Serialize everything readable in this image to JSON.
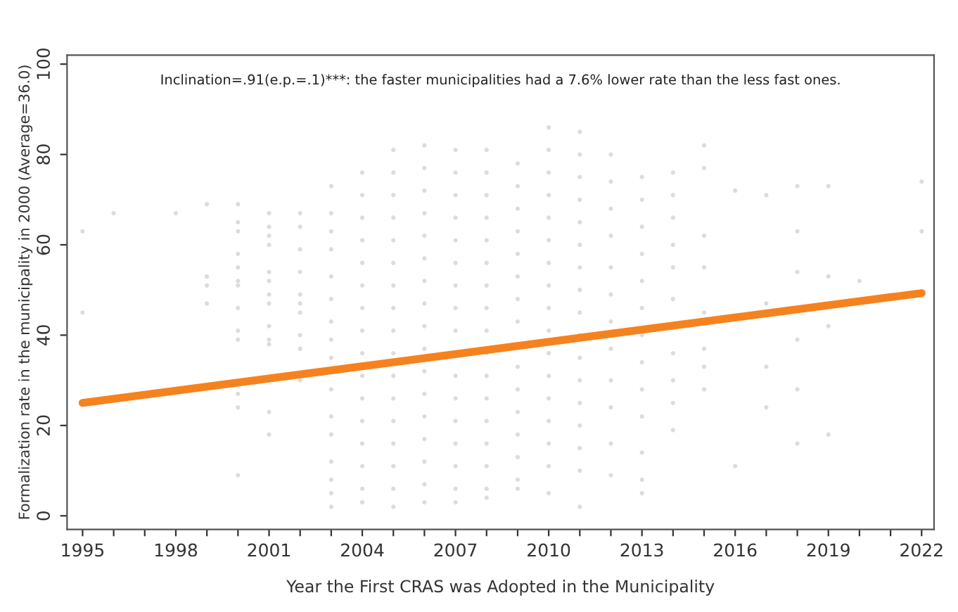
{
  "chart_data": {
    "type": "scatter",
    "xlabel": "Year the First CRAS was Adopted in the Municipality",
    "ylabel": "Formalization rate in the municipality in 2000 (Average=36.0)",
    "annotations": [
      "Inclination=.91(e.p.=.1)***: the faster municipalities had a 7.6% lower rate than the less fast ones."
    ],
    "xlim": [
      1994.5,
      2022.4
    ],
    "ylim": [
      -3,
      102
    ],
    "xticks": [
      1995,
      {
        "value": 1996,
        "label": null
      },
      {
        "value": 1997,
        "label": null
      },
      1998,
      {
        "value": 1999,
        "label": null
      },
      {
        "value": 2000,
        "label": null
      },
      2001,
      {
        "value": 2002,
        "label": null
      },
      {
        "value": 2003,
        "label": null
      },
      2004,
      {
        "value": 2005,
        "label": null
      },
      {
        "value": 2006,
        "label": null
      },
      2007,
      {
        "value": 2008,
        "label": null
      },
      {
        "value": 2009,
        "label": null
      },
      2010,
      {
        "value": 2011,
        "label": null
      },
      {
        "value": 2012,
        "label": null
      },
      2013,
      {
        "value": 2014,
        "label": null
      },
      {
        "value": 2015,
        "label": null
      },
      2016,
      {
        "value": 2017,
        "label": null
      },
      {
        "value": 2018,
        "label": null
      },
      2019,
      {
        "value": 2020,
        "label": null
      },
      {
        "value": 2021,
        "label": null
      },
      2022
    ],
    "yticks": [
      0,
      20,
      40,
      60,
      80,
      100
    ],
    "grid": false,
    "legend": false,
    "series": [
      {
        "color": "#c4c4c4",
        "marker": "circle",
        "x": [
          1995,
          1995,
          1996,
          1998,
          1999,
          1999,
          1999,
          1999,
          2000,
          2000,
          2000,
          2000,
          2000,
          2000,
          2000,
          2000,
          2000,
          2000,
          2000,
          2000,
          2000,
          2001,
          2001,
          2001,
          2001,
          2001,
          2001,
          2001,
          2001,
          2001,
          2001,
          2001,
          2001,
          2001,
          2002,
          2002,
          2002,
          2002,
          2002,
          2002,
          2002,
          2002,
          2002,
          2002,
          2003,
          2003,
          2003,
          2003,
          2003,
          2003,
          2003,
          2003,
          2003,
          2003,
          2003,
          2003,
          2003,
          2003,
          2003,
          2003,
          2004,
          2004,
          2004,
          2004,
          2004,
          2004,
          2004,
          2004,
          2004,
          2004,
          2004,
          2004,
          2004,
          2004,
          2004,
          2004,
          2005,
          2005,
          2005,
          2005,
          2005,
          2005,
          2005,
          2005,
          2005,
          2005,
          2005,
          2005,
          2005,
          2005,
          2005,
          2005,
          2005,
          2006,
          2006,
          2006,
          2006,
          2006,
          2006,
          2006,
          2006,
          2006,
          2006,
          2006,
          2006,
          2006,
          2006,
          2006,
          2006,
          2006,
          2007,
          2007,
          2007,
          2007,
          2007,
          2007,
          2007,
          2007,
          2007,
          2007,
          2007,
          2007,
          2007,
          2007,
          2007,
          2007,
          2008,
          2008,
          2008,
          2008,
          2008,
          2008,
          2008,
          2008,
          2008,
          2008,
          2008,
          2008,
          2008,
          2008,
          2008,
          2008,
          2008,
          2009,
          2009,
          2009,
          2009,
          2009,
          2009,
          2009,
          2009,
          2009,
          2009,
          2009,
          2009,
          2009,
          2009,
          2009,
          2010,
          2010,
          2010,
          2010,
          2010,
          2010,
          2010,
          2010,
          2010,
          2010,
          2010,
          2010,
          2010,
          2010,
          2010,
          2010,
          2010,
          2011,
          2011,
          2011,
          2011,
          2011,
          2011,
          2011,
          2011,
          2011,
          2011,
          2011,
          2011,
          2011,
          2011,
          2011,
          2011,
          2011,
          2012,
          2012,
          2012,
          2012,
          2012,
          2012,
          2012,
          2012,
          2012,
          2012,
          2012,
          2012,
          2013,
          2013,
          2013,
          2013,
          2013,
          2013,
          2013,
          2013,
          2013,
          2013,
          2013,
          2013,
          2013,
          2014,
          2014,
          2014,
          2014,
          2014,
          2014,
          2014,
          2014,
          2014,
          2014,
          2015,
          2015,
          2015,
          2015,
          2015,
          2015,
          2015,
          2015,
          2016,
          2016,
          2017,
          2017,
          2017,
          2017,
          2018,
          2018,
          2018,
          2018,
          2018,
          2018,
          2019,
          2019,
          2019,
          2019,
          2020,
          2022,
          2022
        ],
        "values": [
          63,
          45,
          67,
          67,
          69,
          53,
          51,
          47,
          69,
          65,
          63,
          58,
          55,
          52,
          51,
          46,
          41,
          39,
          27,
          24,
          9,
          67,
          64,
          62,
          60,
          54,
          52,
          49,
          47,
          42,
          39,
          38,
          23,
          18,
          67,
          64,
          59,
          54,
          49,
          47,
          45,
          40,
          37,
          30,
          73,
          67,
          63,
          59,
          53,
          48,
          43,
          39,
          35,
          28,
          22,
          18,
          12,
          8,
          5,
          2,
          76,
          71,
          66,
          61,
          56,
          51,
          46,
          41,
          36,
          31,
          26,
          21,
          16,
          11,
          6,
          3,
          81,
          76,
          71,
          66,
          61,
          56,
          51,
          46,
          41,
          36,
          31,
          26,
          21,
          16,
          11,
          6,
          2,
          82,
          77,
          72,
          67,
          62,
          57,
          52,
          47,
          42,
          37,
          32,
          27,
          22,
          17,
          12,
          7,
          3,
          81,
          76,
          71,
          66,
          61,
          56,
          51,
          46,
          41,
          31,
          26,
          21,
          16,
          11,
          6,
          3,
          81,
          76,
          71,
          66,
          61,
          56,
          51,
          46,
          41,
          36,
          31,
          26,
          21,
          16,
          11,
          6,
          4,
          78,
          73,
          68,
          63,
          58,
          53,
          48,
          43,
          33,
          28,
          23,
          18,
          13,
          8,
          6,
          86,
          81,
          76,
          71,
          66,
          61,
          56,
          51,
          46,
          41,
          36,
          31,
          26,
          21,
          16,
          11,
          5,
          85,
          80,
          75,
          70,
          65,
          60,
          55,
          50,
          45,
          40,
          35,
          30,
          25,
          20,
          15,
          10,
          2,
          80,
          74,
          68,
          62,
          55,
          49,
          43,
          37,
          30,
          24,
          16,
          9,
          75,
          70,
          64,
          58,
          52,
          46,
          40,
          34,
          28,
          22,
          14,
          8,
          5,
          76,
          71,
          66,
          60,
          55,
          48,
          36,
          30,
          25,
          19,
          82,
          77,
          62,
          55,
          45,
          37,
          33,
          28,
          72,
          11,
          71,
          47,
          33,
          24,
          73,
          63,
          54,
          39,
          28,
          16,
          73,
          53,
          42,
          18,
          52,
          74,
          63
        ]
      },
      {
        "type": "line",
        "color": "#f5821f",
        "marker": "none",
        "line_style": "solid",
        "x": [
          1995,
          2022
        ],
        "values": [
          25,
          49.3
        ]
      }
    ]
  }
}
